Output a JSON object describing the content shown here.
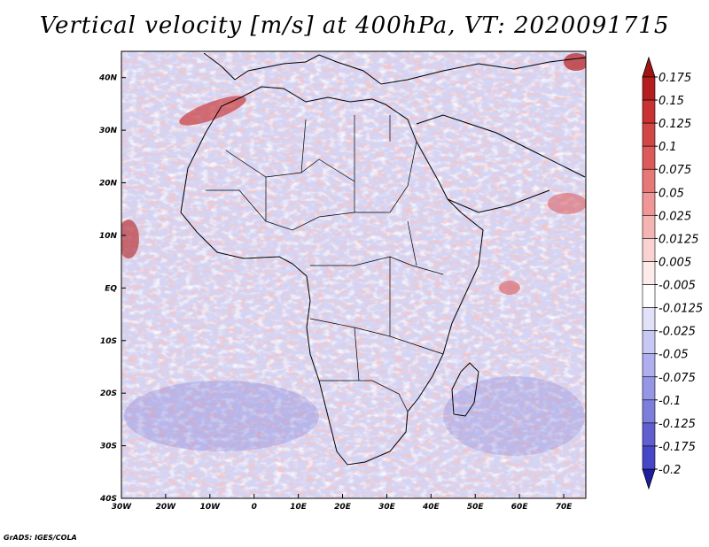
{
  "title": "Vertical velocity [m/s] at 400hPa, VT: 2020091715",
  "footer": "GrADS: IGES/COLA",
  "map": {
    "lon_range": [
      -30,
      75
    ],
    "lat_range": [
      -40,
      45
    ],
    "x_ticks": [
      {
        "value": -30,
        "label": "30W"
      },
      {
        "value": -20,
        "label": "20W"
      },
      {
        "value": -10,
        "label": "10W"
      },
      {
        "value": 0,
        "label": "0"
      },
      {
        "value": 10,
        "label": "10E"
      },
      {
        "value": 20,
        "label": "20E"
      },
      {
        "value": 30,
        "label": "30E"
      },
      {
        "value": 40,
        "label": "40E"
      },
      {
        "value": 50,
        "label": "50E"
      },
      {
        "value": 60,
        "label": "60E"
      },
      {
        "value": 70,
        "label": "70E"
      }
    ],
    "y_ticks": [
      {
        "value": 40,
        "label": "40N"
      },
      {
        "value": 30,
        "label": "30N"
      },
      {
        "value": 20,
        "label": "20N"
      },
      {
        "value": 10,
        "label": "10N"
      },
      {
        "value": 0,
        "label": "EQ"
      },
      {
        "value": -10,
        "label": "10S"
      },
      {
        "value": -20,
        "label": "20S"
      },
      {
        "value": -30,
        "label": "30S"
      },
      {
        "value": -40,
        "label": "40S"
      }
    ]
  },
  "colorbar": {
    "levels": [
      {
        "label": "0.175",
        "color": "#b41e1e"
      },
      {
        "label": "0.15",
        "color": "#c83232"
      },
      {
        "label": "0.125",
        "color": "#d24646"
      },
      {
        "label": "0.1",
        "color": "#dc5a5a"
      },
      {
        "label": "0.075",
        "color": "#e67878"
      },
      {
        "label": "0.05",
        "color": "#f09696"
      },
      {
        "label": "0.025",
        "color": "#f5b4b4"
      },
      {
        "label": "0.0125",
        "color": "#fad2d2"
      },
      {
        "label": "0.005",
        "color": "#fdeaea"
      },
      {
        "label": "-0.005",
        "color": "#ffffff"
      },
      {
        "label": "-0.0125",
        "color": "#e1e1fa"
      },
      {
        "label": "-0.025",
        "color": "#c8c8f5"
      },
      {
        "label": "-0.05",
        "color": "#afafef"
      },
      {
        "label": "-0.075",
        "color": "#9696e6"
      },
      {
        "label": "-0.1",
        "color": "#7d7ddc"
      },
      {
        "label": "-0.125",
        "color": "#5f5fd2"
      },
      {
        "label": "-0.175",
        "color": "#4646c8"
      },
      {
        "label": "-0.2",
        "color": "#2d2db4"
      }
    ],
    "top_arrow_color": "#a01414",
    "bottom_arrow_color": "#1e1ea0"
  },
  "palette": {
    "field_blue": "#8c8ce6",
    "field_red": "#e88a8a",
    "field_bg": "#d4d4f4",
    "border": "#000000"
  }
}
